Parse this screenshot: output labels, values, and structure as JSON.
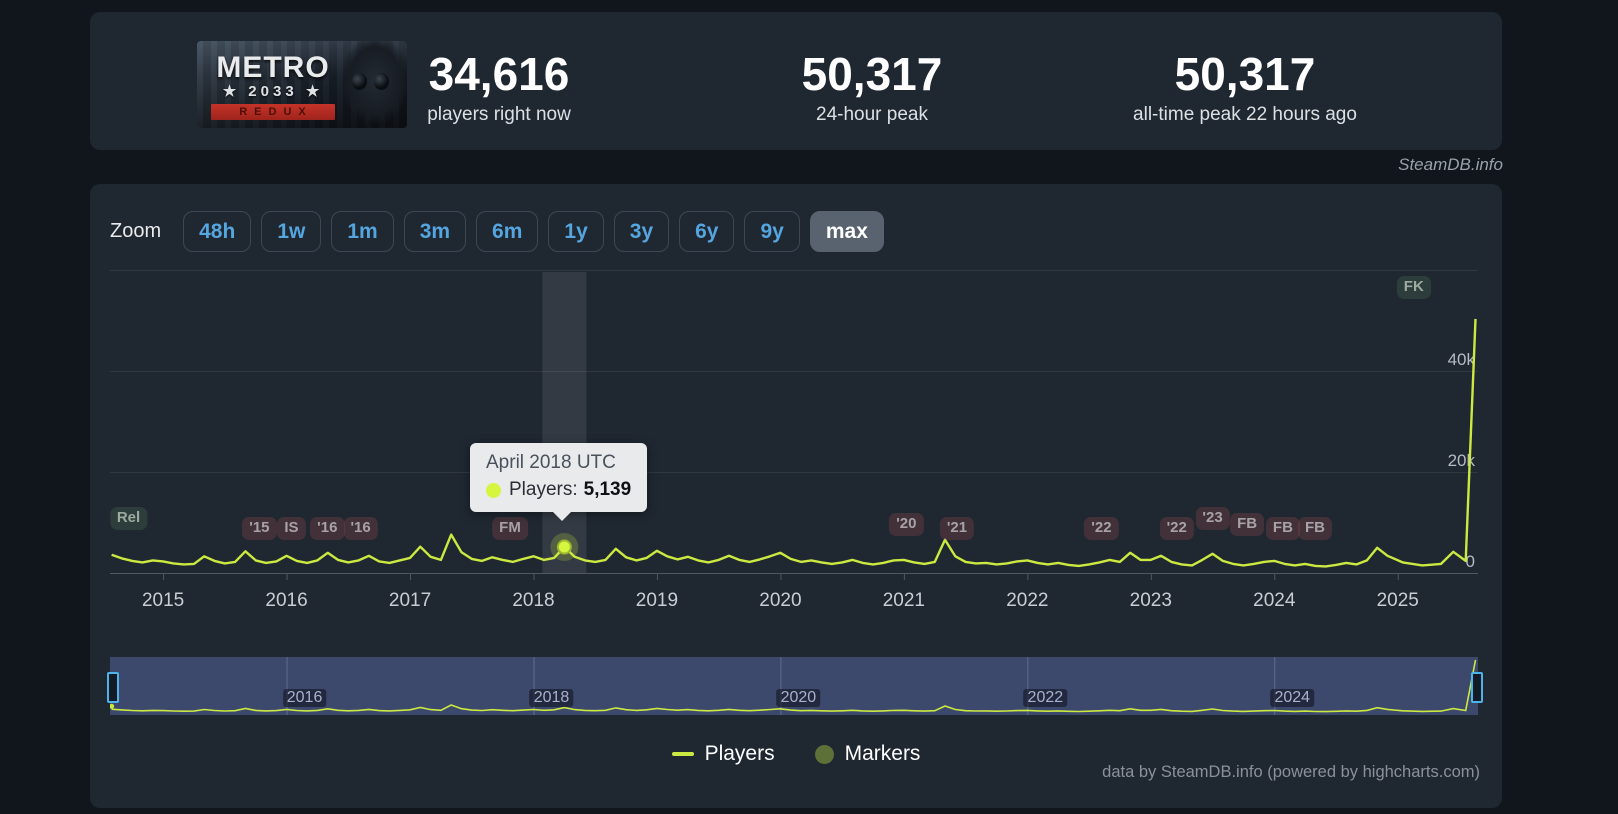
{
  "header": {
    "capsule": {
      "line1": "METRO",
      "line2": "★ 2033 ★",
      "line3": "REDUX"
    },
    "stats": [
      {
        "value": "34,616",
        "label": "players right now"
      },
      {
        "value": "50,317",
        "label": "24-hour peak"
      },
      {
        "value": "50,317",
        "label": "all-time peak 22 hours ago"
      }
    ]
  },
  "watermark": "SteamDB.info",
  "toolbar": {
    "zoom_label": "Zoom",
    "ranges": [
      "48h",
      "1w",
      "1m",
      "3m",
      "6m",
      "1y",
      "3y",
      "6y",
      "9y",
      "max"
    ],
    "selected": "max"
  },
  "tooltip": {
    "title": "April 2018 UTC",
    "series_label": "Players:",
    "value": "5,139"
  },
  "legend": {
    "items": [
      {
        "label": "Players",
        "swatch": "line"
      },
      {
        "label": "Markers",
        "swatch": "circle"
      }
    ]
  },
  "footer": "data by SteamDB.info (powered by highcharts.com)",
  "colors": {
    "series_line": "#cbe941",
    "hover_dot": "#d6f53f",
    "accent_blue": "#55a5df",
    "navigator_mask": "rgba(99,119,190,0.42)",
    "navigator_handle_border": "#4fb2e8",
    "grid": "rgba(255,255,255,0.08)",
    "axis": "#4f5864",
    "x_label": "#c9ced4",
    "y_label": "#b5bbc3"
  },
  "chart_data": {
    "type": "line",
    "title": "",
    "series": [
      {
        "name": "Players",
        "start": "2014-08",
        "interval": "monthly_average",
        "monthly_avg_players": [
          3600,
          2900,
          2400,
          2100,
          2500,
          2300,
          1900,
          1700,
          1800,
          3300,
          2400,
          1900,
          2200,
          4300,
          2500,
          2000,
          2300,
          3400,
          2400,
          2000,
          2500,
          4000,
          2600,
          2100,
          2500,
          3400,
          2300,
          2000,
          2500,
          3000,
          5200,
          3200,
          2600,
          7600,
          4100,
          2800,
          2400,
          3100,
          2600,
          2200,
          2800,
          3300,
          2600,
          3000,
          5139,
          3200,
          2500,
          2200,
          2600,
          4800,
          3100,
          2500,
          3000,
          4400,
          3300,
          2700,
          3200,
          2500,
          2100,
          2600,
          3400,
          2600,
          2200,
          2700,
          3300,
          4000,
          2800,
          2200,
          2500,
          2100,
          1800,
          2100,
          2600,
          2000,
          1700,
          2000,
          2500,
          2600,
          2100,
          1800,
          2200,
          6600,
          3300,
          2200,
          1900,
          2000,
          1700,
          1900,
          2300,
          2500,
          2000,
          1700,
          2000,
          1600,
          1400,
          1700,
          2100,
          2600,
          2200,
          4000,
          2600,
          2600,
          3400,
          2200,
          1700,
          1500,
          2600,
          3800,
          2400,
          1800,
          1500,
          1800,
          2200,
          2400,
          1800,
          1500,
          1800,
          1400,
          1300,
          1600,
          2000,
          1700,
          2500,
          5000,
          3400
        ],
        "recent_points": [
          {
            "x": 2025.04,
            "players": 2100
          },
          {
            "x": 2025.2,
            "players": 1500
          },
          {
            "x": 2025.35,
            "players": 1800
          },
          {
            "x": 2025.45,
            "players": 4200
          },
          {
            "x": 2025.55,
            "players": 2400
          },
          {
            "x": 2025.63,
            "players": 50317
          }
        ]
      }
    ],
    "hovered_point": {
      "label": "April 2018 UTC",
      "players": 5139,
      "x": 2018.25
    },
    "ylim": [
      0,
      60000
    ],
    "y_gridlines": [
      {
        "value": 0,
        "label": "0"
      },
      {
        "value": 20000,
        "label": "20k"
      },
      {
        "value": 40000,
        "label": "40k"
      },
      {
        "value": 60000,
        "label": ""
      }
    ],
    "xticks": [
      2015,
      2016,
      2017,
      2018,
      2019,
      2020,
      2021,
      2022,
      2023,
      2024,
      2025
    ],
    "xlim": [
      2014.57,
      2025.65
    ],
    "x_axis_note": "ordinal-compressed near present",
    "grid": true,
    "legend_position": "bottom",
    "markers": [
      {
        "label": "Rel",
        "x": 2014.72,
        "tone": "green",
        "lift": 10
      },
      {
        "label": "'15",
        "x": 2015.78,
        "tone": "red",
        "lift": 0
      },
      {
        "label": "IS",
        "x": 2016.04,
        "tone": "red",
        "lift": 0
      },
      {
        "label": "'16",
        "x": 2016.33,
        "tone": "red",
        "lift": 0
      },
      {
        "label": "'16",
        "x": 2016.6,
        "tone": "red",
        "lift": 0
      },
      {
        "label": "FM",
        "x": 2017.81,
        "tone": "red",
        "lift": 0
      },
      {
        "label": "'20",
        "x": 2021.02,
        "tone": "red",
        "lift": 4
      },
      {
        "label": "'21",
        "x": 2021.43,
        "tone": "red",
        "lift": 0
      },
      {
        "label": "'22",
        "x": 2022.6,
        "tone": "red",
        "lift": 0
      },
      {
        "label": "'22",
        "x": 2023.21,
        "tone": "red",
        "lift": 0
      },
      {
        "label": "'23",
        "x": 2023.5,
        "tone": "red",
        "lift": 10
      },
      {
        "label": "FB",
        "x": 2023.78,
        "tone": "red",
        "lift": 4
      },
      {
        "label": "FB",
        "x": 2024.07,
        "tone": "red",
        "lift": 0
      },
      {
        "label": "FB",
        "x": 2024.33,
        "tone": "red",
        "lift": 0
      },
      {
        "label": "FK",
        "x": 2025.13,
        "tone": "green",
        "lift": 0,
        "top": true
      }
    ],
    "navigator_years": [
      2016,
      2018,
      2020,
      2022,
      2024
    ]
  }
}
